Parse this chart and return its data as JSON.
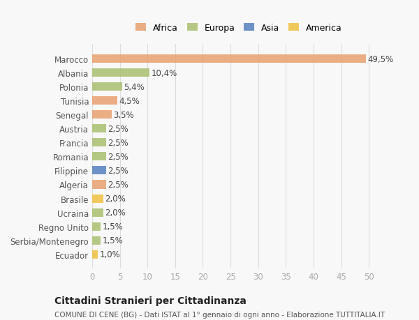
{
  "categories": [
    "Ecuador",
    "Serbia/Montenegro",
    "Regno Unito",
    "Ucraina",
    "Brasile",
    "Algeria",
    "Filippine",
    "Romania",
    "Francia",
    "Austria",
    "Senegal",
    "Tunisia",
    "Polonia",
    "Albania",
    "Marocco"
  ],
  "values": [
    1.0,
    1.5,
    1.5,
    2.0,
    2.0,
    2.5,
    2.5,
    2.5,
    2.5,
    2.5,
    3.5,
    4.5,
    5.4,
    10.4,
    49.5
  ],
  "labels": [
    "1,0%",
    "1,5%",
    "1,5%",
    "2,0%",
    "2,0%",
    "2,5%",
    "2,5%",
    "2,5%",
    "2,5%",
    "2,5%",
    "3,5%",
    "4,5%",
    "5,4%",
    "10,4%",
    "49,5%"
  ],
  "colors": [
    "#F0C040",
    "#A8C070",
    "#A8C070",
    "#A8C070",
    "#F0C040",
    "#E8A070",
    "#5580C0",
    "#A8C070",
    "#A8C070",
    "#A8C070",
    "#E8A070",
    "#E8A070",
    "#A8C070",
    "#A8C070",
    "#E8A070"
  ],
  "legend_names": [
    "Africa",
    "Europa",
    "Asia",
    "America"
  ],
  "legend_colors": [
    "#E8A070",
    "#A8C070",
    "#5580C0",
    "#F0C040"
  ],
  "xlim": [
    0,
    53
  ],
  "xticks": [
    0,
    5,
    10,
    15,
    20,
    25,
    30,
    35,
    40,
    45,
    50
  ],
  "title": "Cittadini Stranieri per Cittadinanza",
  "subtitle": "COMUNE DI CENE (BG) - Dati ISTAT al 1° gennaio di ogni anno - Elaborazione TUTTITALIA.IT",
  "bg_color": "#f8f8f8",
  "grid_color": "#dddddd",
  "bar_alpha": 0.85
}
